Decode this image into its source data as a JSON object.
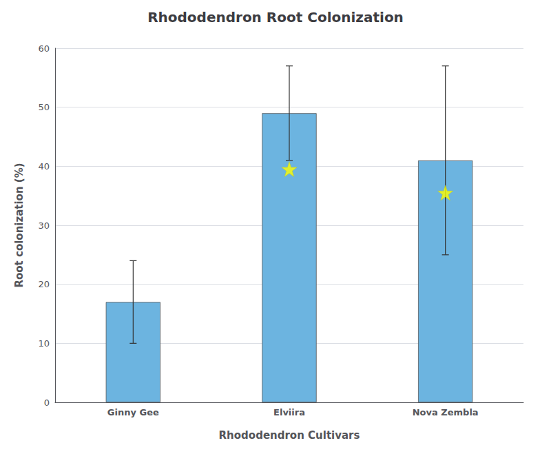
{
  "chart_data": {
    "type": "bar",
    "title": "Rhododendron Root Colonization",
    "xlabel": "Rhododendron Cultivars",
    "ylabel": "Root colonization (%)",
    "categories": [
      "Ginny Gee",
      "Elviira",
      "Nova Zembla"
    ],
    "series": [
      {
        "type": "bar",
        "values": [
          17,
          49,
          41
        ],
        "errors": [
          7,
          8,
          16
        ],
        "color": "#6cb4e0"
      },
      {
        "type": "scatter",
        "marker": "star",
        "color": "#ffff00",
        "values": [
          null,
          39.5,
          35.5
        ]
      }
    ],
    "ylim": [
      0,
      60
    ],
    "yticks": [
      0,
      10,
      20,
      30,
      40,
      50,
      60
    ],
    "grid": true
  }
}
